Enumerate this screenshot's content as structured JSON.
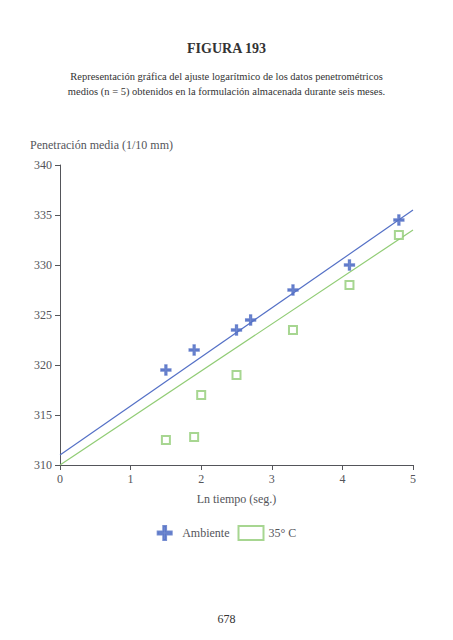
{
  "chart_data": {
    "type": "scatter",
    "title": "FIGURA 193",
    "subtitle": [
      "Representación gráfica del ajuste logarítmico de los datos penetrométricos",
      "medios (n = 5) obtenidos en la formulación almacenada durante seis meses."
    ],
    "annotations": [
      "678"
    ],
    "ylabel": "Penetración media (1/10 mm)",
    "xlabel": "Ln tiempo (seg.)",
    "xlim": [
      0,
      5
    ],
    "ylim": [
      310,
      340
    ],
    "xticks": [
      0,
      1,
      2,
      3,
      4,
      5
    ],
    "yticks": [
      310,
      315,
      320,
      325,
      330,
      335,
      340
    ],
    "grid": false,
    "legend": "bottom",
    "series": [
      {
        "name": "Ambiente",
        "marker": "plus",
        "x": [
          1.5,
          1.9,
          2.5,
          2.7,
          3.3,
          4.1,
          4.8
        ],
        "values": [
          319.5,
          321.5,
          323.5,
          324.5,
          327.5,
          330.0,
          334.5
        ],
        "fit_x": [
          0,
          5
        ],
        "fit_values": [
          311.0,
          335.5
        ]
      },
      {
        "name": "35° C",
        "marker": "square",
        "x": [
          1.5,
          1.9,
          2.0,
          2.5,
          3.3,
          4.1,
          4.8
        ],
        "values": [
          312.5,
          312.8,
          317.0,
          319.0,
          323.5,
          328.0,
          333.0
        ],
        "fit_x": [
          0,
          5
        ],
        "fit_values": [
          310.0,
          333.5
        ]
      }
    ]
  }
}
